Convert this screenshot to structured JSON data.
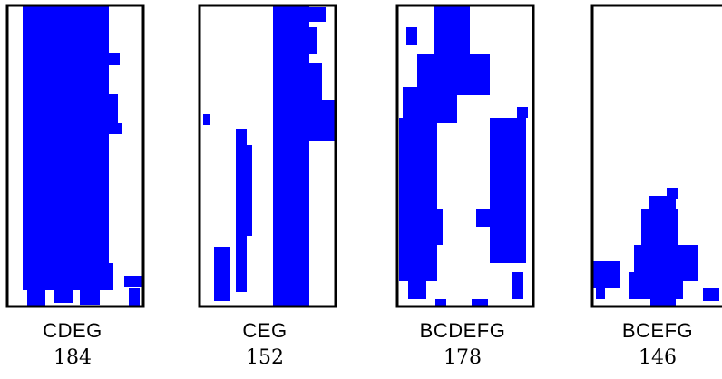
{
  "fill_color": "#0000ff",
  "frame_color": "#000000",
  "panels": [
    {
      "name": "CDEG",
      "count": "184"
    },
    {
      "name": "CEG",
      "count": "152"
    },
    {
      "name": "BCDEFG",
      "count": "178"
    },
    {
      "name": "BCEFG",
      "count": "146"
    }
  ]
}
